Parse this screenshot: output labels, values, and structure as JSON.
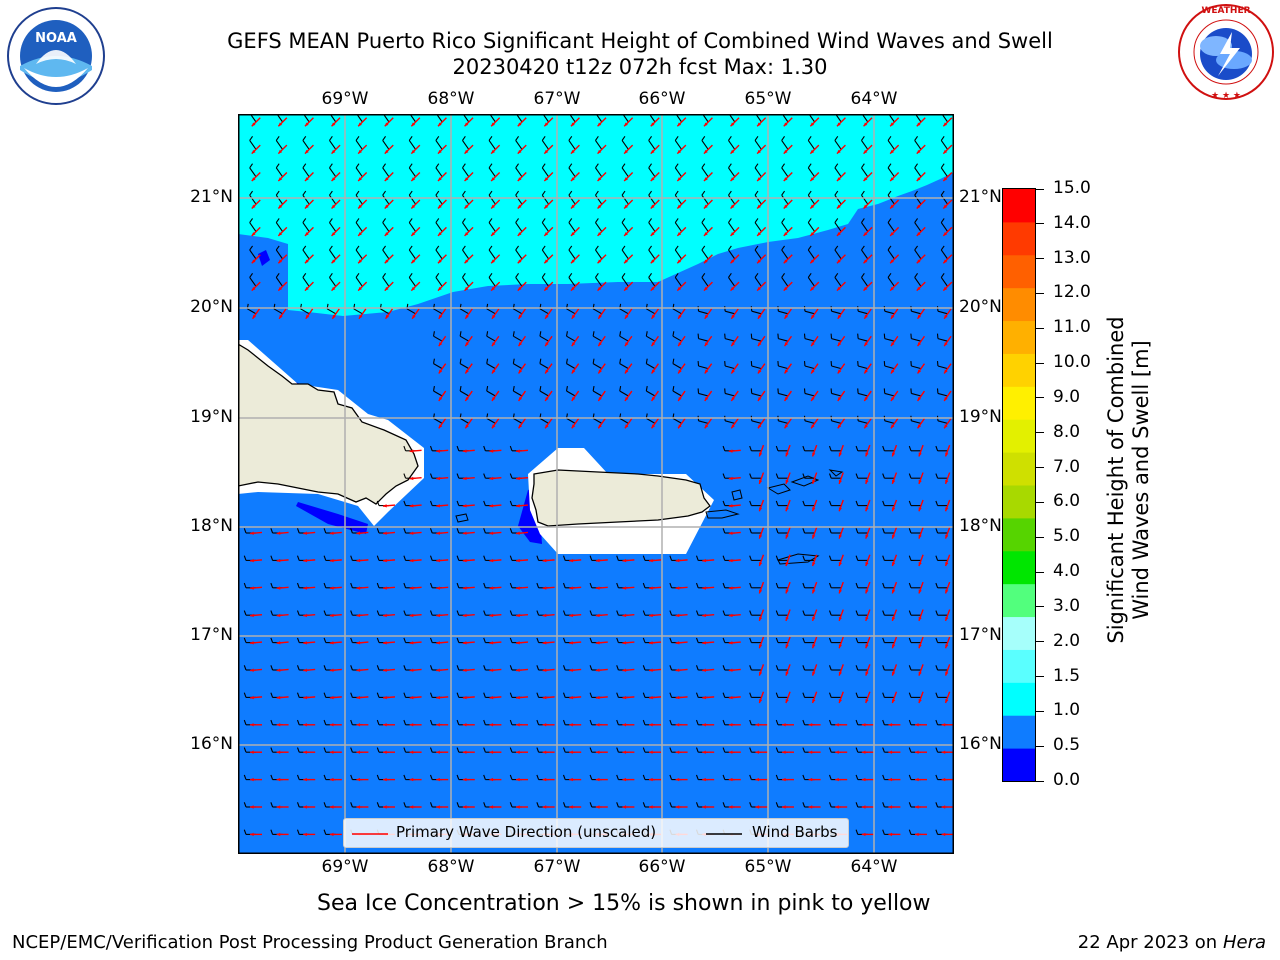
{
  "title": {
    "line1": "GEFS MEAN Puerto Rico Significant Height of Combined Wind Waves and Swell",
    "line2": "20230420 t12z 072h fcst   Max: 1.30"
  },
  "logos": {
    "left": {
      "name": "noaa-logo",
      "text": "NOAA",
      "ring_text": "NATIONAL OCEANIC AND ATMOSPHERIC ADMINISTRATION · U.S. DEPARTMENT OF COMMERCE"
    },
    "right": {
      "name": "nws-logo",
      "ring_text": "NATIONAL WEATHER SERVICE"
    }
  },
  "map": {
    "lon_labels": [
      "69°W",
      "68°W",
      "67°W",
      "66°W",
      "65°W",
      "64°W"
    ],
    "lat_labels": [
      "21°N",
      "20°N",
      "19°N",
      "18°N",
      "17°N",
      "16°N"
    ],
    "colors": {
      "ocean_main": "#0f7cff",
      "ocean_high": "#00ffff",
      "ocean_low": "#0000ff",
      "land": "#ecebd9",
      "wave_arrow": "#ff0000",
      "wind_barb": "#000000",
      "grid": "#b0b0b0"
    }
  },
  "legend": {
    "wave_label": "Primary Wave Direction (unscaled)",
    "wind_label": "Wind Barbs"
  },
  "colorbar": {
    "label_line1": "Significant Height of Combined",
    "label_line2": "Wind Waves and Swell [m]",
    "ticks": [
      "15.0",
      "14.0",
      "13.0",
      "12.0",
      "11.0",
      "10.0",
      "9.0",
      "8.0",
      "7.0",
      "6.0",
      "5.0",
      "4.0",
      "3.0",
      "2.0",
      "1.5",
      "1.0",
      "0.5",
      "0.0"
    ],
    "segments": [
      "#0000ff",
      "#0f7cff",
      "#00ffff",
      "#5affff",
      "#a6fffb",
      "#52ff7d",
      "#00e600",
      "#56d400",
      "#a8d900",
      "#cfe000",
      "#e3f000",
      "#fff000",
      "#ffd200",
      "#ffb000",
      "#ff8c00",
      "#ff6000",
      "#ff3a00",
      "#ff0000"
    ]
  },
  "note": "Sea Ice Concentration > 15% is shown in pink to yellow",
  "footer": {
    "left": "NCEP/EMC/Verification Post Processing Product Generation Branch",
    "right_date": "22 Apr 2023 on ",
    "right_machine": "Hera"
  }
}
